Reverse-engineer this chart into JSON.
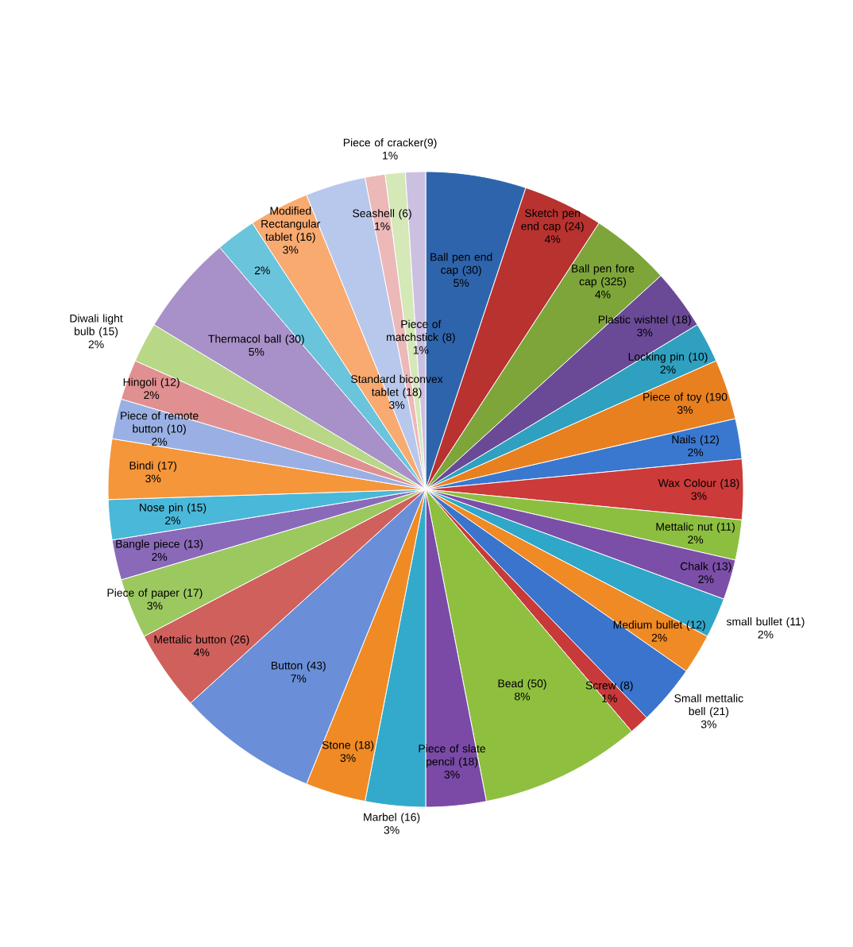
{
  "chart_data": {
    "type": "pie",
    "categories": [
      "Ball pen end cap (30)",
      "Sketch pen end cap (24)",
      "Ball pen fore cap (325)",
      "Plastic wishtel (18)",
      "Locking pin (10)",
      "Piece of toy (190",
      "Nails (12)",
      "Wax Colour (18)",
      "Mettalic nut (11)",
      "Chalk (13)",
      "small bullet (11)",
      "Medium bullet (12)",
      "Small mettalic bell (21)",
      "Screw (8)",
      "Bead (50)",
      "Piece of slate pencil (18)",
      "Marbel (16)",
      "Stone (18)",
      "Button (43)",
      "Mettalic button (26)",
      "Piece of paper (17)",
      "Bangle piece (13)",
      "Nose pin (15)",
      "Bindi (17)",
      "Piece of remote button (10)",
      "Hingoli (12)",
      "Diwali light bulb (15)",
      "Thermacol ball (30)",
      null,
      "Modified Rectangular tablet (16)",
      "Standard biconvex tablet (18)",
      "Seashell (6)",
      "Piece of cracker(9)",
      "Piece of matchstick (8)"
    ],
    "values": [
      5,
      4,
      4,
      3,
      2,
      3,
      2,
      3,
      2,
      2,
      2,
      2,
      3,
      1,
      8,
      3,
      3,
      3,
      7,
      4,
      3,
      2,
      2,
      3,
      2,
      2,
      2,
      5,
      2,
      3,
      3,
      1,
      1,
      1
    ],
    "value_labels": [
      "5%",
      "4%",
      "4%",
      "3%",
      "2%",
      "3%",
      "2%",
      "3%",
      "2%",
      "2%",
      "2%",
      "2%",
      "3%",
      "1%",
      "8%",
      "3%",
      "3%",
      "3%",
      "7%",
      "4%",
      "3%",
      "2%",
      "2%",
      "3%",
      "2%",
      "2%",
      "2%",
      "5%",
      "2%",
      "3%",
      "3%",
      "1%",
      "1%",
      "1%"
    ],
    "colors": [
      "#2e64ac",
      "#b83230",
      "#7ea53a",
      "#6a4a96",
      "#2fa0c0",
      "#e8801f",
      "#3a78d0",
      "#cc3a3a",
      "#8cbf40",
      "#7b4fa8",
      "#2fa7c8",
      "#f08a24",
      "#3a74cc",
      "#c83a3a",
      "#8fbf3f",
      "#7a4aa6",
      "#33aacc",
      "#f08a24",
      "#6a8fd8",
      "#d0605c",
      "#9cc860",
      "#8a6ab8",
      "#4ab8d8",
      "#f5963a",
      "#9ab0e4",
      "#e09090",
      "#b8d888",
      "#a890c8",
      "#6ac4dc",
      "#f8aa70",
      "#b8c8ec",
      "#ecb8b8",
      "#d4e8b8",
      "#ccc0e0"
    ]
  }
}
